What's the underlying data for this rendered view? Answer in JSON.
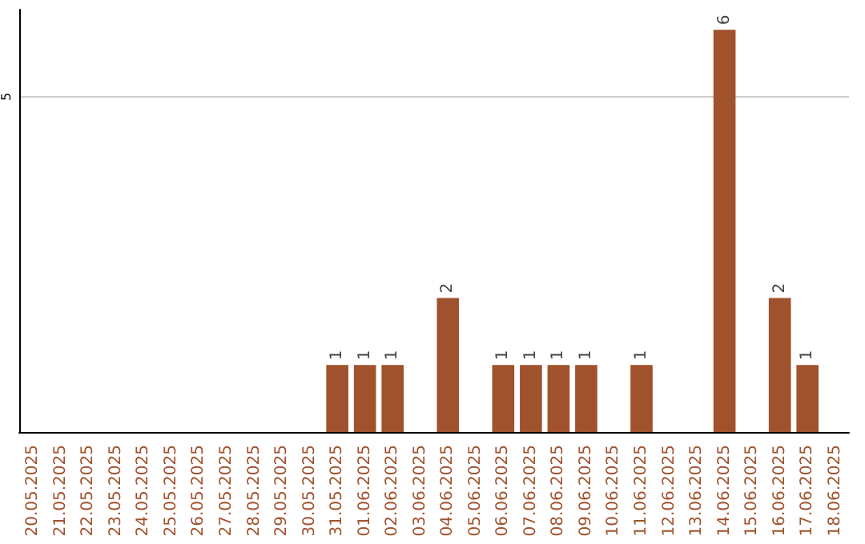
{
  "chart_data": {
    "type": "bar",
    "categories": [
      "20.05.2025",
      "21.05.2025",
      "22.05.2025",
      "23.05.2025",
      "24.05.2025",
      "25.05.2025",
      "26.05.2025",
      "27.05.2025",
      "28.05.2025",
      "29.05.2025",
      "30.05.2025",
      "31.05.2025",
      "01.06.2025",
      "02.06.2025",
      "03.06.2025",
      "04.06.2025",
      "05.06.2025",
      "06.06.2025",
      "07.06.2025",
      "08.06.2025",
      "09.06.2025",
      "10.06.2025",
      "11.06.2025",
      "12.06.2025",
      "13.06.2025",
      "14.06.2025",
      "15.06.2025",
      "16.06.2025",
      "17.06.2025",
      "18.06.2025"
    ],
    "values": [
      0,
      0,
      0,
      0,
      0,
      0,
      0,
      0,
      0,
      0,
      0,
      1,
      1,
      1,
      0,
      2,
      0,
      1,
      1,
      1,
      1,
      0,
      1,
      0,
      0,
      6,
      0,
      2,
      1,
      0
    ],
    "value_labels": [
      null,
      null,
      null,
      null,
      null,
      null,
      null,
      null,
      null,
      null,
      null,
      "1",
      "1",
      "1",
      null,
      "2",
      null,
      "1",
      "1",
      "1",
      "1",
      null,
      "1",
      null,
      null,
      "6",
      null,
      "2",
      "1",
      null
    ],
    "color": "#a0522d",
    "ylim": [
      0,
      6.3
    ],
    "yticks": [
      5
    ],
    "grid": "y"
  }
}
